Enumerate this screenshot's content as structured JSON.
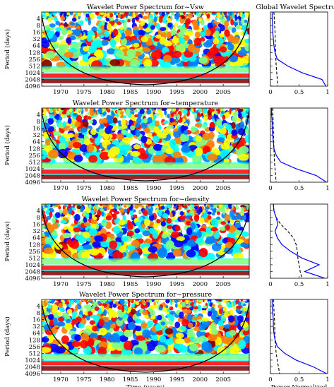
{
  "chart_data": [
    {
      "type": "heatmap",
      "title": "Wavelet Power Spectrum for~Vsw",
      "ylabel": "Period (days)",
      "y_ticks": [
        "4",
        "8",
        "16",
        "32",
        "64",
        "128",
        "256",
        "512",
        "1024",
        "2048",
        "4096"
      ],
      "x_ticks": [
        "1970",
        "1975",
        "1980",
        "1985",
        "1990",
        "1995",
        "2000",
        "2005"
      ],
      "xlim": [
        1965.9,
        2010.6
      ],
      "y_scale": "log2",
      "ylim": [
        2,
        4096
      ],
      "xlabel": "",
      "global": {
        "title": "Global Wavelet Spectrum",
        "x_ticks": [
          "0",
          "0.5",
          "1"
        ],
        "xlim": [
          0,
          1
        ],
        "xlabel": "",
        "spectrum": {
          "period": [
            2,
            4,
            8,
            16,
            32,
            64,
            128,
            256,
            512,
            1024,
            2048,
            4096
          ],
          "power": [
            0.03,
            0.03,
            0.04,
            0.04,
            0.05,
            0.06,
            0.08,
            0.12,
            0.3,
            0.55,
            0.9,
            0.97
          ]
        },
        "significance": {
          "period": [
            2,
            16,
            128,
            512,
            1024,
            2048,
            4096
          ],
          "power": [
            0.06,
            0.08,
            0.09,
            0.1,
            0.11,
            0.12,
            0.13
          ]
        }
      }
    },
    {
      "type": "heatmap",
      "title": "Wavelet Power Spectrum for~temperature",
      "ylabel": "Period (days)",
      "y_ticks": [
        "4",
        "8",
        "16",
        "32",
        "64",
        "128",
        "256",
        "512",
        "1024",
        "2048",
        "4096"
      ],
      "x_ticks": [
        "1970",
        "1975",
        "1980",
        "1985",
        "1990",
        "1995",
        "2000",
        "2005"
      ],
      "xlim": [
        1965.9,
        2010.6
      ],
      "y_scale": "log2",
      "ylim": [
        2,
        4096
      ],
      "xlabel": "",
      "global": {
        "title": "",
        "x_ticks": [
          "0",
          "0.5",
          "1"
        ],
        "xlim": [
          0,
          1
        ],
        "xlabel": "",
        "spectrum": {
          "period": [
            2,
            4,
            8,
            16,
            32,
            64,
            128,
            256,
            512,
            1024,
            2048,
            4096
          ],
          "power": [
            0.02,
            0.02,
            0.03,
            0.03,
            0.04,
            0.05,
            0.06,
            0.1,
            0.18,
            0.45,
            0.8,
            0.98
          ]
        },
        "significance": {
          "period": [
            2,
            16,
            128,
            512,
            1024,
            2048,
            4096
          ],
          "power": [
            0.04,
            0.05,
            0.06,
            0.07,
            0.08,
            0.09,
            0.1
          ]
        }
      }
    },
    {
      "type": "heatmap",
      "title": "Wavelet Power Spectrum for~density",
      "ylabel": "Period (days)",
      "y_ticks": [
        "4",
        "8",
        "16",
        "32",
        "64",
        "128",
        "256",
        "512",
        "1024",
        "2048",
        "4096"
      ],
      "x_ticks": [
        "1970",
        "1975",
        "1980",
        "1985",
        "1990",
        "1995",
        "2000",
        "2005"
      ],
      "xlim": [
        1965.9,
        2010.6
      ],
      "y_scale": "log2",
      "ylim": [
        2,
        4096
      ],
      "xlabel": "",
      "global": {
        "title": "",
        "x_ticks": [
          "0",
          "0.5",
          "1"
        ],
        "xlim": [
          0,
          1
        ],
        "xlabel": "",
        "spectrum": {
          "period": [
            2,
            4,
            8,
            16,
            32,
            64,
            128,
            256,
            512,
            1024,
            2048,
            4096
          ],
          "power": [
            0.05,
            0.06,
            0.1,
            0.13,
            0.08,
            0.12,
            0.2,
            0.35,
            0.55,
            0.85,
            0.6,
            0.95
          ]
        },
        "significance": {
          "period": [
            2,
            4,
            8,
            16,
            32,
            64,
            128,
            256,
            512,
            1024,
            2048,
            4096
          ],
          "power": [
            0.05,
            0.06,
            0.1,
            0.18,
            0.3,
            0.4,
            0.45,
            0.47,
            0.48,
            0.5,
            0.52,
            0.55
          ]
        }
      }
    },
    {
      "type": "heatmap",
      "title": "Wavelet Power Spectrum for~pressure",
      "ylabel": "Period (days)",
      "y_ticks": [
        "4",
        "8",
        "16",
        "32",
        "64",
        "128",
        "256",
        "512",
        "1024",
        "2048",
        "4096"
      ],
      "x_ticks": [
        "1970",
        "1975",
        "1980",
        "1985",
        "1990",
        "1995",
        "2000",
        "2005"
      ],
      "xlim": [
        1965.9,
        2010.6
      ],
      "y_scale": "log2",
      "ylim": [
        2,
        4096
      ],
      "xlabel": "Time (years)",
      "global": {
        "title": "",
        "x_ticks": [
          "0",
          "0.5",
          "1"
        ],
        "xlim": [
          0,
          1
        ],
        "xlabel": "Power Normalized",
        "spectrum": {
          "period": [
            2,
            4,
            8,
            16,
            32,
            64,
            128,
            256,
            512,
            1024,
            2048,
            4096
          ],
          "power": [
            0.03,
            0.03,
            0.04,
            0.05,
            0.05,
            0.06,
            0.08,
            0.12,
            0.25,
            0.45,
            0.75,
            0.98
          ]
        },
        "significance": {
          "period": [
            2,
            16,
            128,
            512,
            1024,
            2048,
            4096
          ],
          "power": [
            0.05,
            0.07,
            0.08,
            0.1,
            0.12,
            0.14,
            0.16
          ]
        }
      }
    }
  ]
}
